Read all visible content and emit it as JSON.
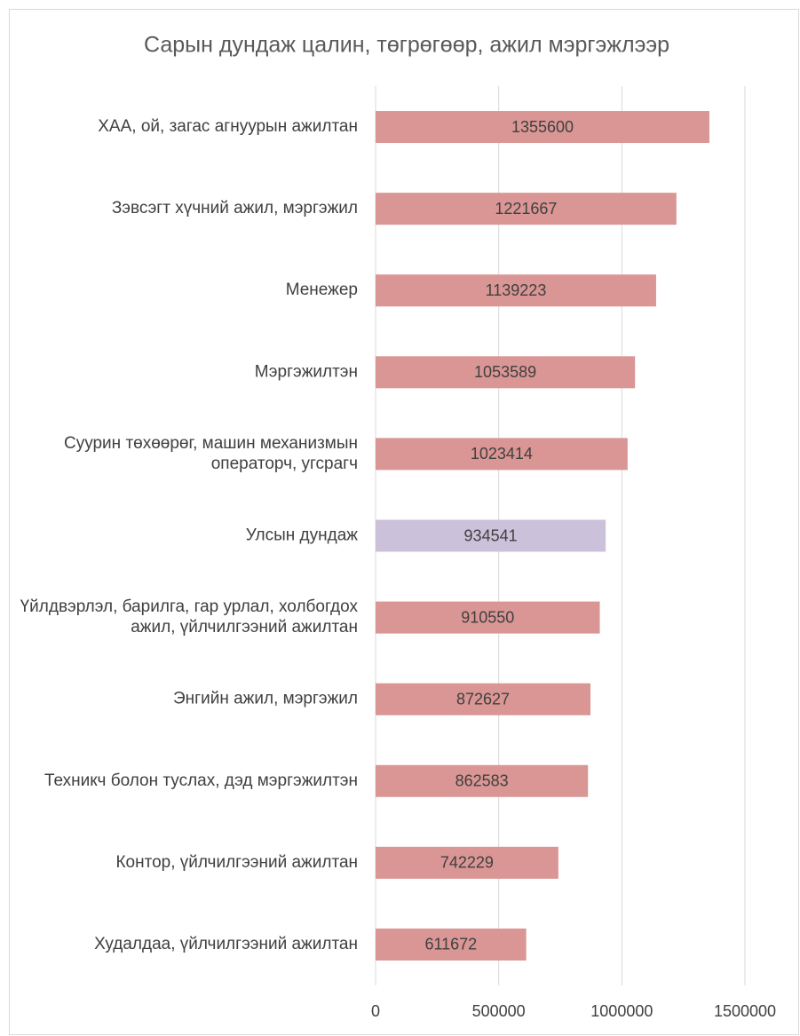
{
  "chart_data": {
    "type": "bar",
    "orientation": "horizontal",
    "title": "Сарын дундаж цалин, төгрөгөөр, ажил мэргэжлээр",
    "categories": [
      "ХАА, ой, загас агнуурын ажилтан",
      "Зэвсэгт хүчний ажил, мэргэжил",
      "Менежер",
      "Мэргэжилтэн",
      "Суурин төхөөрөг, машин механизмын операторч, угсрагч",
      "Улсын дундаж",
      "Үйлдвэрлэл, барилга, гар урлал, холбогдох ажил, үйлчилгээний ажилтан",
      "Энгийн ажил, мэргэжил",
      "Техникч болон туслах, дэд мэргэжилтэн",
      "Контор, үйлчилгээний ажилтан",
      "Худалдаа, үйлчилгээний ажилтан"
    ],
    "values": [
      1355600,
      1221667,
      1139223,
      1053589,
      1023414,
      934541,
      910550,
      872627,
      862583,
      742229,
      611672
    ],
    "colors": [
      "#d99694",
      "#d99694",
      "#d99694",
      "#d99694",
      "#d99694",
      "#ccc1da",
      "#d99694",
      "#d99694",
      "#d99694",
      "#d99694",
      "#d99694"
    ],
    "xlim": [
      0,
      1500000
    ],
    "xticks": [
      0,
      500000,
      1000000,
      1500000
    ],
    "grid": true
  }
}
